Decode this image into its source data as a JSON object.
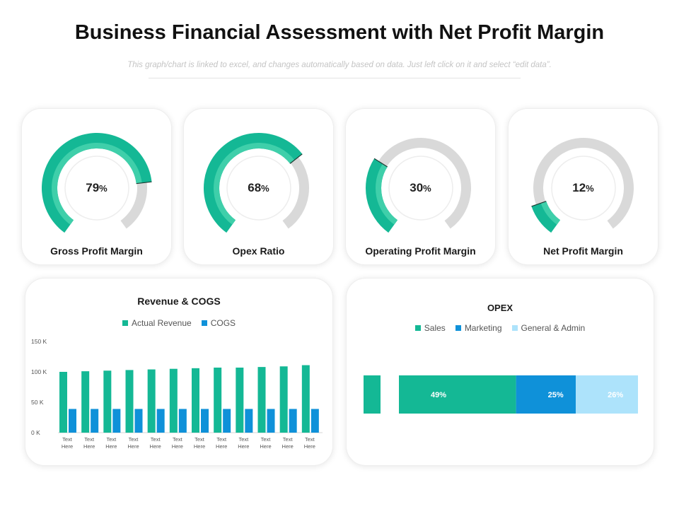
{
  "title": "Business Financial Assessment with Net Profit Margin",
  "subtitle": "This graph/chart is linked to excel, and changes automatically based on data. Just left click on it and select “edit data”.",
  "colors": {
    "green": "#14b895",
    "green_light": "#3fcfaa",
    "gray": "#d9d9d9",
    "blue": "#0f91d9",
    "light_blue": "#ade3fb"
  },
  "gauges": [
    {
      "value": "79",
      "unit": "%",
      "label": "Gross Profit Margin"
    },
    {
      "value": "68",
      "unit": "%",
      "label": "Opex Ratio"
    },
    {
      "value": "30",
      "unit": "%",
      "label": "Operating Profit Margin"
    },
    {
      "value": "12",
      "unit": "%",
      "label": "Net Profit Margin"
    }
  ],
  "chart_data": [
    {
      "type": "bar",
      "title": "Revenue & COGS",
      "categories": [
        "Text Here",
        "Text Here",
        "Text Here",
        "Text Here",
        "Text Here",
        "Text Here",
        "Text Here",
        "Text Here",
        "Text Here",
        "Text Here",
        "Text Here",
        "Text Here"
      ],
      "series": [
        {
          "name": "Actual Revenue",
          "color": "#14b895",
          "values": [
            100,
            101,
            102,
            103,
            104,
            105,
            106,
            107,
            107,
            108,
            109,
            111
          ]
        },
        {
          "name": "COGS",
          "color": "#0f91d9",
          "values": [
            39,
            39,
            39,
            39,
            39,
            39,
            39,
            39,
            39,
            39,
            39,
            39
          ]
        }
      ],
      "yticks": [
        "0 K",
        "50 K",
        "100 K",
        "150 K"
      ],
      "ylim": [
        0,
        150
      ],
      "legend": "top"
    },
    {
      "type": "bar",
      "orientation": "horizontal-stacked",
      "title": "OPEX",
      "series": [
        {
          "name": "Sales",
          "color": "#14b895",
          "value": 49,
          "label": "49%"
        },
        {
          "name": "Marketing",
          "color": "#0f91d9",
          "value": 25,
          "label": "25%"
        },
        {
          "name": "General & Admin",
          "color": "#ade3fb",
          "value": 26,
          "label": "26%"
        }
      ],
      "legend": "top"
    }
  ]
}
